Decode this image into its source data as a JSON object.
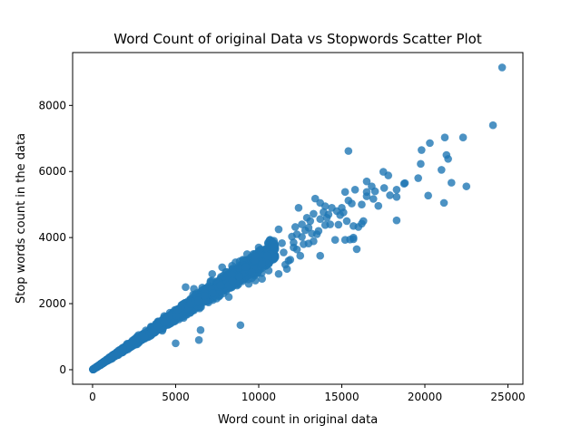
{
  "chart_data": {
    "type": "scatter",
    "title": "Word Count of original Data vs Stopwords Scatter Plot",
    "xlabel": "Word count in original data",
    "ylabel": "Stop words count in the data",
    "xlim": [
      -1200,
      25900
    ],
    "ylim": [
      -440,
      9600
    ],
    "xticks": [
      0,
      5000,
      10000,
      15000,
      20000,
      25000
    ],
    "yticks": [
      0,
      2000,
      4000,
      6000,
      8000
    ],
    "xtick_labels": [
      "0",
      "5000",
      "10000",
      "15000",
      "20000",
      "25000"
    ],
    "ytick_labels": [
      "0",
      "2000",
      "4000",
      "6000",
      "8000"
    ],
    "grid": false,
    "legend": "none",
    "marker_color": "#1f77b4",
    "marker_alpha": 0.8,
    "dense_band": {
      "x_range": [
        30,
        11000
      ],
      "ratio": 0.33,
      "spread": 0.05,
      "point_count": 3000
    },
    "points": [
      [
        24650,
        9150
      ],
      [
        24100,
        7400
      ],
      [
        22300,
        7030
      ],
      [
        21200,
        7030
      ],
      [
        21300,
        6500
      ],
      [
        21400,
        6380
      ],
      [
        20300,
        6860
      ],
      [
        21000,
        6050
      ],
      [
        19800,
        6650
      ],
      [
        19750,
        6230
      ],
      [
        19600,
        5800
      ],
      [
        22500,
        5550
      ],
      [
        21600,
        5660
      ],
      [
        21150,
        5050
      ],
      [
        20200,
        5270
      ],
      [
        15400,
        6620
      ],
      [
        18800,
        5650
      ],
      [
        18300,
        5230
      ],
      [
        18300,
        5450
      ],
      [
        18300,
        4520
      ],
      [
        18750,
        5630
      ],
      [
        17800,
        5880
      ],
      [
        17500,
        5990
      ],
      [
        17550,
        5500
      ],
      [
        17000,
        5400
      ],
      [
        16800,
        5550
      ],
      [
        16200,
        5000
      ],
      [
        16500,
        5250
      ],
      [
        16300,
        4500
      ],
      [
        16500,
        5700
      ],
      [
        15800,
        5450
      ],
      [
        15600,
        5030
      ],
      [
        15200,
        5380
      ],
      [
        15100,
        4760
      ],
      [
        15400,
        5120
      ],
      [
        14700,
        4800
      ],
      [
        14400,
        4900
      ],
      [
        14200,
        4700
      ],
      [
        14800,
        4390
      ],
      [
        14900,
        4680
      ],
      [
        13900,
        4770
      ],
      [
        14000,
        4380
      ],
      [
        13700,
        4560
      ],
      [
        14000,
        4950
      ],
      [
        13400,
        5180
      ],
      [
        13700,
        5050
      ],
      [
        13500,
        4100
      ],
      [
        13200,
        4120
      ],
      [
        13300,
        3890
      ],
      [
        13000,
        3820
      ],
      [
        12600,
        4020
      ],
      [
        12800,
        4220
      ],
      [
        13100,
        4500
      ],
      [
        13300,
        4720
      ],
      [
        12900,
        4600
      ],
      [
        12400,
        4900
      ],
      [
        12600,
        4400
      ],
      [
        12200,
        4320
      ],
      [
        12100,
        3700
      ],
      [
        12500,
        3450
      ],
      [
        12300,
        3640
      ],
      [
        11800,
        3300
      ],
      [
        11600,
        3180
      ],
      [
        11400,
        3830
      ],
      [
        11000,
        3650
      ],
      [
        10700,
        3500
      ],
      [
        10200,
        3200
      ],
      [
        15700,
        3950
      ],
      [
        15900,
        3650
      ],
      [
        15700,
        4350
      ],
      [
        16200,
        4420
      ],
      [
        16000,
        4320
      ],
      [
        15700,
        4000
      ],
      [
        16900,
        5170
      ],
      [
        17200,
        4960
      ],
      [
        16500,
        5380
      ],
      [
        17900,
        5280
      ],
      [
        15200,
        3930
      ],
      [
        15500,
        3940
      ],
      [
        14600,
        3930
      ],
      [
        13700,
        3450
      ],
      [
        12000,
        4030
      ],
      [
        11200,
        4250
      ],
      [
        10900,
        3720
      ],
      [
        9800,
        3450
      ],
      [
        8900,
        1350
      ],
      [
        6500,
        1200
      ],
      [
        6400,
        900
      ],
      [
        5000,
        800
      ],
      [
        5600,
        2500
      ],
      [
        6100,
        2450
      ],
      [
        7200,
        2900
      ],
      [
        5100,
        1830
      ],
      [
        4200,
        1180
      ],
      [
        9800,
        2700
      ],
      [
        9400,
        2600
      ],
      [
        10200,
        2750
      ],
      [
        10600,
        3000
      ],
      [
        11200,
        2900
      ],
      [
        11700,
        3050
      ],
      [
        8200,
        2200
      ],
      [
        7800,
        3100
      ],
      [
        8600,
        3250
      ],
      [
        9300,
        3500
      ],
      [
        10000,
        3700
      ],
      [
        10500,
        3450
      ],
      [
        11000,
        3400
      ],
      [
        11500,
        3550
      ],
      [
        12100,
        3850
      ],
      [
        11900,
        3330
      ],
      [
        12700,
        3800
      ],
      [
        13000,
        4300
      ],
      [
        12300,
        4100
      ],
      [
        13600,
        4200
      ],
      [
        14100,
        4600
      ],
      [
        14300,
        4400
      ],
      [
        15000,
        4900
      ],
      [
        15300,
        4500
      ]
    ]
  }
}
